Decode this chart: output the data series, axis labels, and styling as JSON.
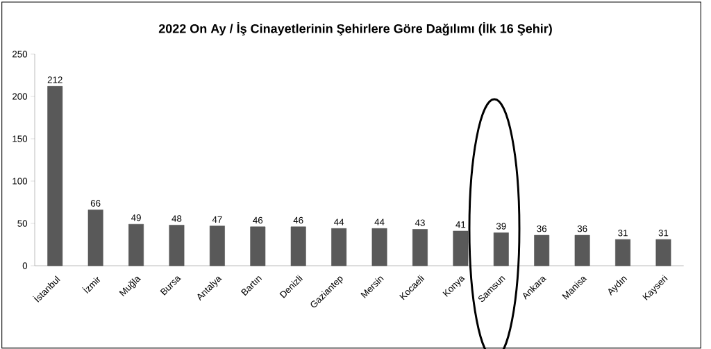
{
  "chart_data": {
    "type": "bar",
    "title": "2022 On Ay / İş Cinayetlerinin Şehirlere Göre Dağılımı (İlk 16 Şehir)",
    "categories": [
      "İstanbul",
      "İzmir",
      "Muğla",
      "Bursa",
      "Antalya",
      "Bartın",
      "Denizli",
      "Gaziantep",
      "Mersin",
      "Kocaeli",
      "Konya",
      "Samsun",
      "Ankara",
      "Manisa",
      "Aydın",
      "Kayseri"
    ],
    "values": [
      212,
      66,
      49,
      48,
      47,
      46,
      46,
      44,
      44,
      43,
      41,
      39,
      36,
      36,
      31,
      31
    ],
    "color": "#595959",
    "ylim": [
      0,
      250
    ],
    "yticks": [
      0,
      50,
      100,
      150,
      200,
      250
    ],
    "grid": false,
    "data_labels": true
  }
}
